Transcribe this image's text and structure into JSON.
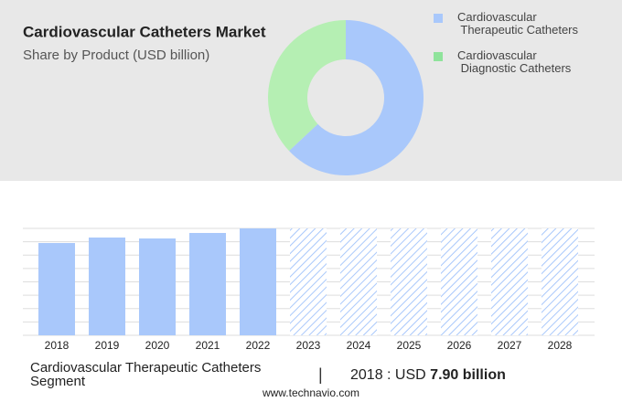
{
  "chart_data": [
    {
      "type": "pie",
      "title": "Cardiovascular Catheters Market",
      "subtitle": "Share by Product (USD billion)",
      "categories": [
        "Cardiovascular Therapeutic Catheters",
        "Cardiovascular Diagnostic Catheters"
      ],
      "values": [
        63,
        37
      ],
      "colors": [
        "#a9c8fb",
        "#b5efb3"
      ],
      "legend_colors": [
        "#a9c8fb",
        "#8fe39b"
      ],
      "donut": true
    },
    {
      "type": "bar",
      "categories": [
        "2018",
        "2019",
        "2020",
        "2021",
        "2022",
        "2023",
        "2024",
        "2025",
        "2026",
        "2027",
        "2028"
      ],
      "values": [
        7.9,
        8.37,
        8.29,
        8.76,
        9.15,
        null,
        null,
        null,
        null,
        null,
        null
      ],
      "color": "#a9c8fb",
      "ylim": [
        0,
        9.15
      ],
      "grid": true,
      "segment": "Cardiovascular Therapeutic Catheters Segment",
      "highlight_text": "2018 : USD",
      "highlight_value": {
        "value": 7.9,
        "label": "7.90 billion"
      },
      "source": "www.technavio.com"
    }
  ]
}
